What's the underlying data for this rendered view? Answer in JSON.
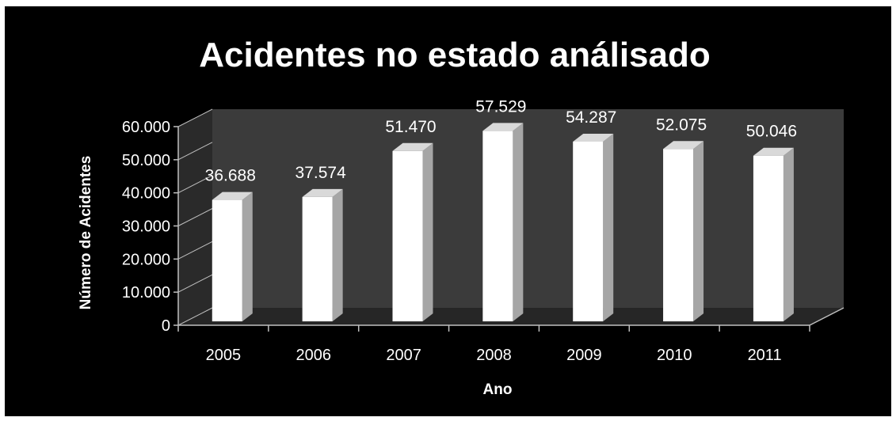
{
  "chart_data": {
    "type": "bar",
    "title": "Acidentes no estado análisado",
    "xlabel": "Ano",
    "ylabel": "Número de Acidentes",
    "categories": [
      "2005",
      "2006",
      "2007",
      "2008",
      "2009",
      "2010",
      "2011"
    ],
    "values": [
      36688,
      37574,
      51470,
      57529,
      54287,
      52075,
      50046
    ],
    "data_labels": [
      "36.688",
      "37.574",
      "51.470",
      "57.529",
      "54.287",
      "52.075",
      "50.046"
    ],
    "yticks": [
      "0",
      "10.000",
      "20.000",
      "30.000",
      "40.000",
      "50.000",
      "60.000"
    ],
    "ylim": [
      0,
      60000
    ],
    "grid": false,
    "legend": "none",
    "style": "3d-column",
    "colors": {
      "background": "#000000",
      "bar_front": "#ffffff",
      "bar_side": "#a6a6a6",
      "bar_top": "#d9d9d9",
      "back_wall": "#3b3b3b",
      "side_wall": "#2a2a2a",
      "floor": "#262626",
      "text": "#ffffff"
    }
  }
}
